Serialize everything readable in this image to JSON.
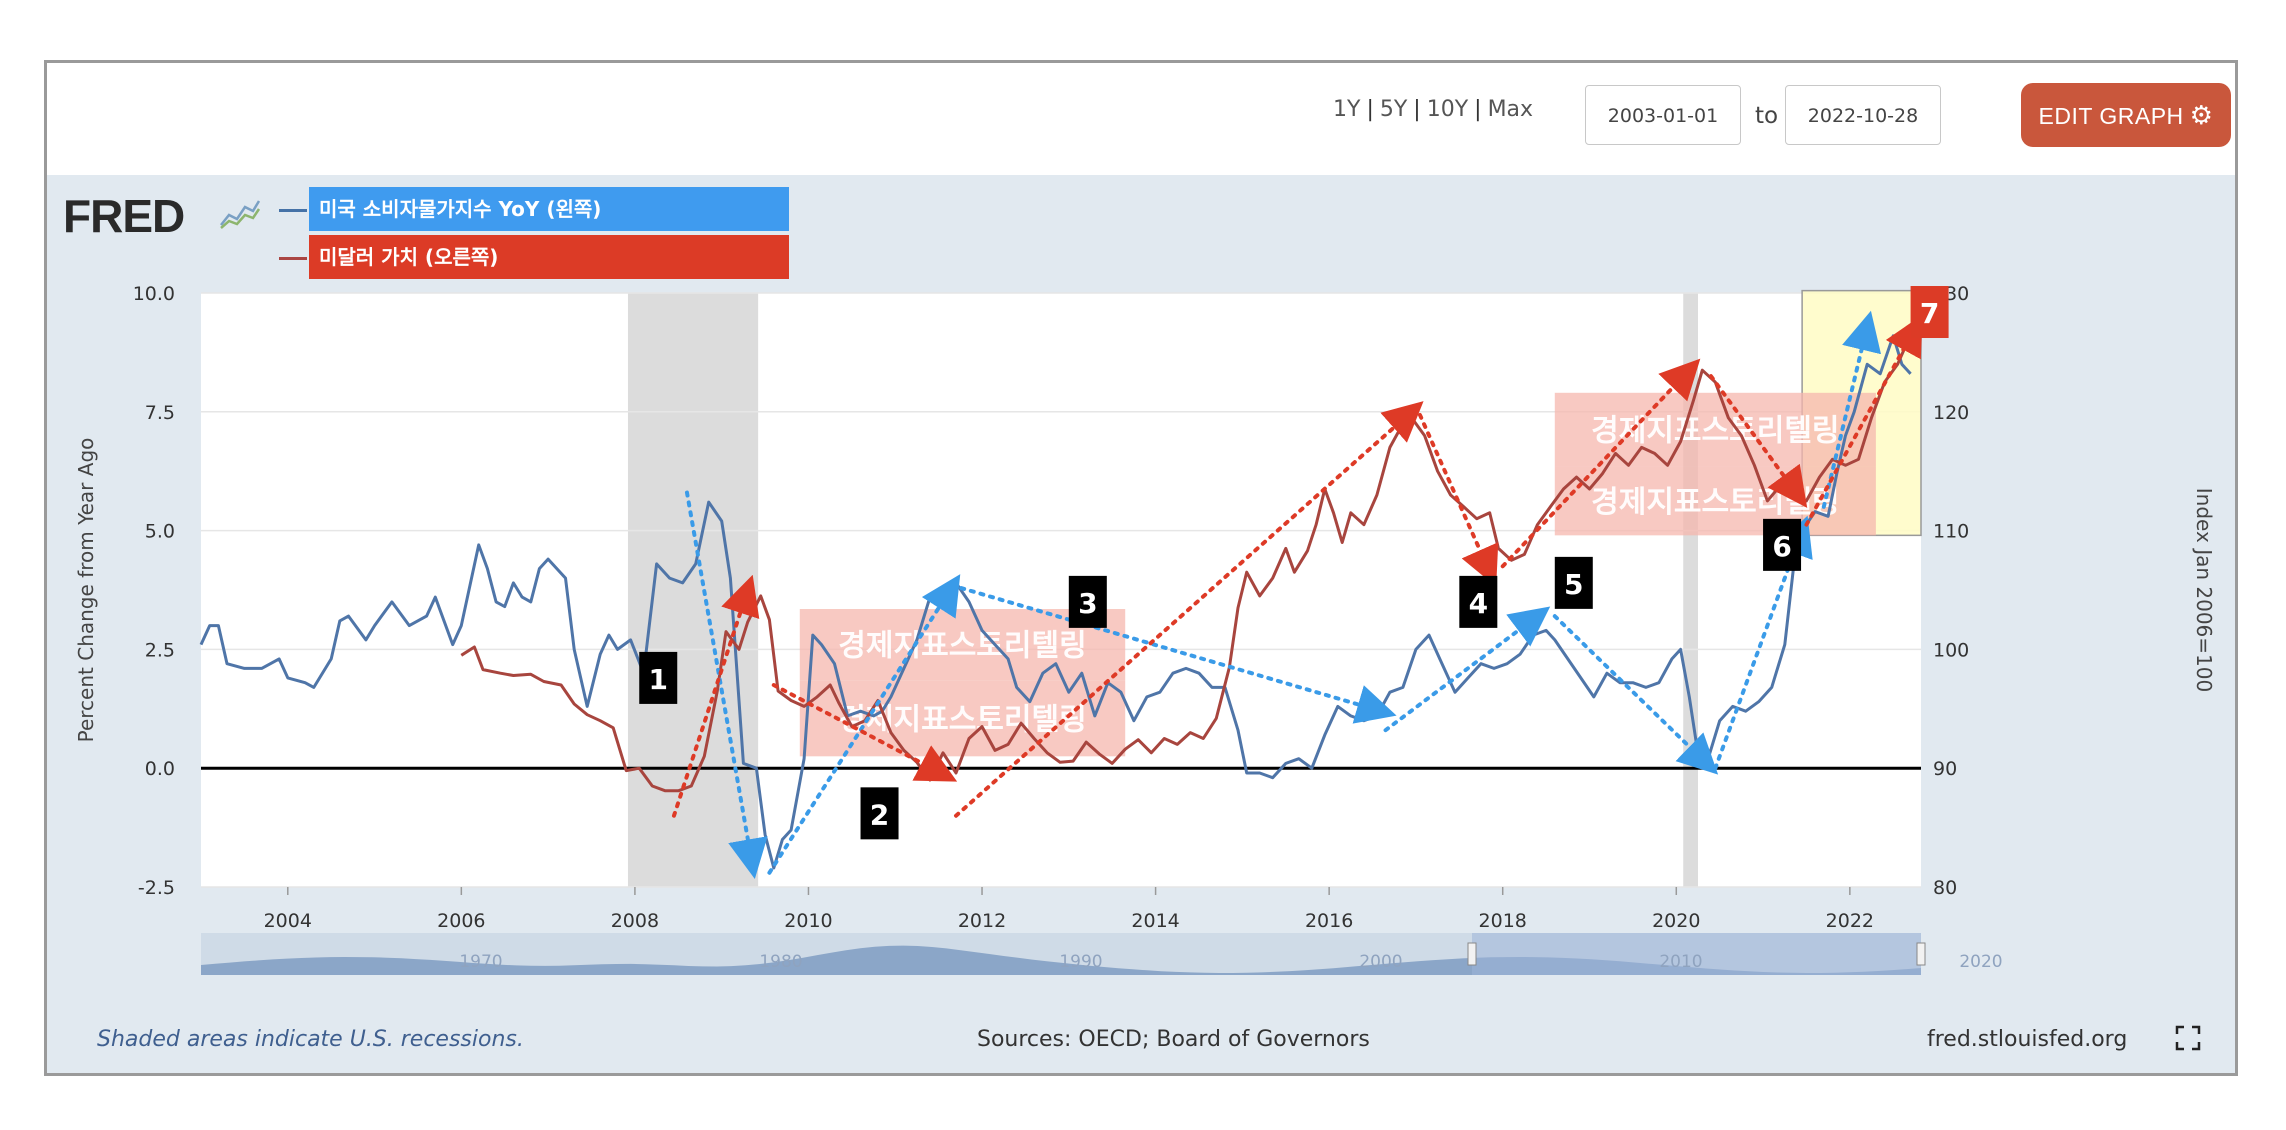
{
  "toolbar": {
    "presets": [
      "1Y",
      "5Y",
      "10Y",
      "Max"
    ],
    "start_date": "2003-01-01",
    "to_label": "to",
    "end_date": "2022-10-28",
    "edit_label": "EDIT GRAPH"
  },
  "logo": {
    "text": "FRED"
  },
  "legend": [
    {
      "label": "미국 소비자물가지수 YoY (왼쪽)",
      "line_color": "#4572a7",
      "box_color": "#3f9bef"
    },
    {
      "label": "미달러 가치 (오른쪽)",
      "line_color": "#aa4643",
      "box_color": "#dc3b26"
    }
  ],
  "footer": {
    "recession_note": "Shaded areas indicate U.S. recessions.",
    "sources": "Sources: OECD; Board of Governors",
    "site": "fred.stlouisfed.org"
  },
  "colors": {
    "cpi": "#4f75a8",
    "usd": "#a8453e",
    "blue_arrow": "#3a9be8",
    "red_arrow": "#de3a26",
    "recession": "#dcdcdc",
    "marker_bg": "#000000",
    "marker7_bg": "#dc3b26",
    "highlight": "#fffbc4"
  },
  "chart_data": {
    "type": "line",
    "xlabel": "",
    "ylabel_left": "Percent Change from Year Ago",
    "ylabel_right": "Index Jan 2006=100",
    "x_range": [
      2003.0,
      2022.82
    ],
    "y_left_range": [
      -2.5,
      10.0
    ],
    "y_right_range": [
      80,
      130
    ],
    "y_left_ticks": [
      "-2.5",
      "0.0",
      "2.5",
      "5.0",
      "7.5",
      "10.0"
    ],
    "y_right_ticks": [
      "80",
      "90",
      "100",
      "110",
      "120",
      "130"
    ],
    "x_ticks": [
      "2004",
      "2006",
      "2008",
      "2010",
      "2012",
      "2014",
      "2016",
      "2018",
      "2020",
      "2022"
    ],
    "grid": true,
    "recessions": [
      [
        2007.92,
        2009.42
      ],
      [
        2020.08,
        2020.25
      ]
    ],
    "series": [
      {
        "name": "미국 소비자물가지수 YoY (왼쪽)",
        "axis": "left",
        "points": [
          [
            2003.0,
            2.6
          ],
          [
            2003.1,
            3.0
          ],
          [
            2003.2,
            3.0
          ],
          [
            2003.3,
            2.2
          ],
          [
            2003.5,
            2.1
          ],
          [
            2003.7,
            2.1
          ],
          [
            2003.9,
            2.3
          ],
          [
            2004.0,
            1.9
          ],
          [
            2004.2,
            1.8
          ],
          [
            2004.3,
            1.7
          ],
          [
            2004.5,
            2.3
          ],
          [
            2004.6,
            3.1
          ],
          [
            2004.7,
            3.2
          ],
          [
            2004.9,
            2.7
          ],
          [
            2005.0,
            3.0
          ],
          [
            2005.2,
            3.5
          ],
          [
            2005.4,
            3.0
          ],
          [
            2005.6,
            3.2
          ],
          [
            2005.7,
            3.6
          ],
          [
            2005.9,
            2.6
          ],
          [
            2006.0,
            3.0
          ],
          [
            2006.2,
            4.7
          ],
          [
            2006.3,
            4.2
          ],
          [
            2006.4,
            3.5
          ],
          [
            2006.5,
            3.4
          ],
          [
            2006.6,
            3.9
          ],
          [
            2006.7,
            3.6
          ],
          [
            2006.8,
            3.5
          ],
          [
            2006.9,
            4.2
          ],
          [
            2007.0,
            4.4
          ],
          [
            2007.2,
            4.0
          ],
          [
            2007.3,
            2.5
          ],
          [
            2007.45,
            1.3
          ],
          [
            2007.6,
            2.4
          ],
          [
            2007.7,
            2.8
          ],
          [
            2007.8,
            2.5
          ],
          [
            2007.95,
            2.7
          ],
          [
            2008.1,
            2.0
          ],
          [
            2008.25,
            4.3
          ],
          [
            2008.4,
            4.0
          ],
          [
            2008.55,
            3.9
          ],
          [
            2008.7,
            4.3
          ],
          [
            2008.85,
            5.6
          ],
          [
            2009.0,
            5.2
          ],
          [
            2009.1,
            4.0
          ],
          [
            2009.25,
            0.1
          ],
          [
            2009.4,
            0.0
          ],
          [
            2009.5,
            -1.4
          ],
          [
            2009.6,
            -2.1
          ],
          [
            2009.7,
            -1.5
          ],
          [
            2009.8,
            -1.3
          ],
          [
            2009.95,
            0.2
          ],
          [
            2010.05,
            2.8
          ],
          [
            2010.15,
            2.6
          ],
          [
            2010.3,
            2.2
          ],
          [
            2010.45,
            1.1
          ],
          [
            2010.6,
            1.2
          ],
          [
            2010.75,
            1.1
          ],
          [
            2010.85,
            1.2
          ],
          [
            2010.95,
            1.5
          ],
          [
            2011.1,
            2.1
          ],
          [
            2011.25,
            2.7
          ],
          [
            2011.4,
            3.6
          ],
          [
            2011.55,
            3.6
          ],
          [
            2011.7,
            3.9
          ],
          [
            2011.85,
            3.5
          ],
          [
            2012.0,
            2.9
          ],
          [
            2012.15,
            2.6
          ],
          [
            2012.3,
            2.3
          ],
          [
            2012.4,
            1.7
          ],
          [
            2012.55,
            1.4
          ],
          [
            2012.7,
            2.0
          ],
          [
            2012.85,
            2.2
          ],
          [
            2013.0,
            1.6
          ],
          [
            2013.15,
            2.0
          ],
          [
            2013.3,
            1.1
          ],
          [
            2013.45,
            1.8
          ],
          [
            2013.6,
            1.6
          ],
          [
            2013.75,
            1.0
          ],
          [
            2013.9,
            1.5
          ],
          [
            2014.05,
            1.6
          ],
          [
            2014.2,
            2.0
          ],
          [
            2014.35,
            2.1
          ],
          [
            2014.5,
            2.0
          ],
          [
            2014.65,
            1.7
          ],
          [
            2014.8,
            1.7
          ],
          [
            2014.95,
            0.8
          ],
          [
            2015.05,
            -0.1
          ],
          [
            2015.2,
            -0.1
          ],
          [
            2015.35,
            -0.2
          ],
          [
            2015.5,
            0.1
          ],
          [
            2015.65,
            0.2
          ],
          [
            2015.8,
            0.0
          ],
          [
            2015.95,
            0.7
          ],
          [
            2016.1,
            1.3
          ],
          [
            2016.25,
            1.1
          ],
          [
            2016.4,
            1.0
          ],
          [
            2016.55,
            1.1
          ],
          [
            2016.7,
            1.6
          ],
          [
            2016.85,
            1.7
          ],
          [
            2017.0,
            2.5
          ],
          [
            2017.15,
            2.8
          ],
          [
            2017.3,
            2.2
          ],
          [
            2017.45,
            1.6
          ],
          [
            2017.6,
            1.9
          ],
          [
            2017.75,
            2.2
          ],
          [
            2017.9,
            2.1
          ],
          [
            2018.05,
            2.2
          ],
          [
            2018.2,
            2.4
          ],
          [
            2018.35,
            2.8
          ],
          [
            2018.5,
            2.9
          ],
          [
            2018.6,
            2.7
          ],
          [
            2018.75,
            2.3
          ],
          [
            2018.9,
            1.9
          ],
          [
            2019.05,
            1.5
          ],
          [
            2019.2,
            2.0
          ],
          [
            2019.35,
            1.8
          ],
          [
            2019.5,
            1.8
          ],
          [
            2019.65,
            1.7
          ],
          [
            2019.8,
            1.8
          ],
          [
            2019.95,
            2.3
          ],
          [
            2020.05,
            2.5
          ],
          [
            2020.15,
            1.5
          ],
          [
            2020.25,
            0.3
          ],
          [
            2020.35,
            0.1
          ],
          [
            2020.5,
            1.0
          ],
          [
            2020.65,
            1.3
          ],
          [
            2020.8,
            1.2
          ],
          [
            2020.95,
            1.4
          ],
          [
            2021.1,
            1.7
          ],
          [
            2021.25,
            2.6
          ],
          [
            2021.35,
            4.2
          ],
          [
            2021.45,
            5.0
          ],
          [
            2021.6,
            5.4
          ],
          [
            2021.75,
            5.3
          ],
          [
            2021.85,
            6.2
          ],
          [
            2021.95,
            7.0
          ],
          [
            2022.05,
            7.5
          ],
          [
            2022.2,
            8.5
          ],
          [
            2022.35,
            8.3
          ],
          [
            2022.5,
            9.1
          ],
          [
            2022.6,
            8.5
          ],
          [
            2022.7,
            8.3
          ]
        ]
      },
      {
        "name": "미달러 가치 (오른쪽)",
        "axis": "right",
        "points": [
          [
            2006.0,
            99.5
          ],
          [
            2006.15,
            100.2
          ],
          [
            2006.25,
            98.3
          ],
          [
            2006.45,
            98.0
          ],
          [
            2006.6,
            97.8
          ],
          [
            2006.8,
            97.9
          ],
          [
            2006.95,
            97.3
          ],
          [
            2007.15,
            97.0
          ],
          [
            2007.3,
            95.4
          ],
          [
            2007.45,
            94.5
          ],
          [
            2007.6,
            94.0
          ],
          [
            2007.75,
            93.4
          ],
          [
            2007.9,
            89.8
          ],
          [
            2008.05,
            90.0
          ],
          [
            2008.2,
            88.5
          ],
          [
            2008.35,
            88.1
          ],
          [
            2008.5,
            88.1
          ],
          [
            2008.65,
            88.5
          ],
          [
            2008.8,
            91.0
          ],
          [
            2008.95,
            96.5
          ],
          [
            2009.05,
            101.5
          ],
          [
            2009.2,
            100.0
          ],
          [
            2009.3,
            102.3
          ],
          [
            2009.45,
            104.5
          ],
          [
            2009.55,
            102.5
          ],
          [
            2009.65,
            96.5
          ],
          [
            2009.8,
            95.7
          ],
          [
            2009.95,
            95.2
          ],
          [
            2010.1,
            96.0
          ],
          [
            2010.25,
            97.0
          ],
          [
            2010.35,
            95.5
          ],
          [
            2010.5,
            93.5
          ],
          [
            2010.65,
            94.0
          ],
          [
            2010.8,
            95.7
          ],
          [
            2010.95,
            93.0
          ],
          [
            2011.1,
            91.5
          ],
          [
            2011.25,
            90.5
          ],
          [
            2011.4,
            89.0
          ],
          [
            2011.55,
            91.3
          ],
          [
            2011.7,
            89.6
          ],
          [
            2011.85,
            92.5
          ],
          [
            2012.0,
            93.5
          ],
          [
            2012.15,
            91.5
          ],
          [
            2012.3,
            92.0
          ],
          [
            2012.45,
            93.8
          ],
          [
            2012.6,
            92.5
          ],
          [
            2012.75,
            91.3
          ],
          [
            2012.9,
            90.5
          ],
          [
            2013.05,
            90.6
          ],
          [
            2013.2,
            92.2
          ],
          [
            2013.35,
            91.2
          ],
          [
            2013.5,
            90.4
          ],
          [
            2013.65,
            91.6
          ],
          [
            2013.8,
            92.4
          ],
          [
            2013.95,
            91.3
          ],
          [
            2014.1,
            92.5
          ],
          [
            2014.25,
            92.0
          ],
          [
            2014.4,
            93.0
          ],
          [
            2014.55,
            92.5
          ],
          [
            2014.7,
            94.2
          ],
          [
            2014.85,
            98.5
          ],
          [
            2014.95,
            103.5
          ],
          [
            2015.05,
            106.5
          ],
          [
            2015.2,
            104.5
          ],
          [
            2015.35,
            106.0
          ],
          [
            2015.5,
            108.5
          ],
          [
            2015.6,
            106.5
          ],
          [
            2015.75,
            108.3
          ],
          [
            2015.85,
            110.5
          ],
          [
            2015.95,
            113.5
          ],
          [
            2016.05,
            111.5
          ],
          [
            2016.15,
            109.0
          ],
          [
            2016.25,
            111.5
          ],
          [
            2016.4,
            110.5
          ],
          [
            2016.55,
            113.0
          ],
          [
            2016.7,
            117.0
          ],
          [
            2016.85,
            119.0
          ],
          [
            2016.95,
            119.5
          ],
          [
            2017.1,
            118.0
          ],
          [
            2017.25,
            115.0
          ],
          [
            2017.4,
            113.0
          ],
          [
            2017.55,
            112.0
          ],
          [
            2017.7,
            111.0
          ],
          [
            2017.85,
            111.5
          ],
          [
            2017.95,
            108.5
          ],
          [
            2018.1,
            107.5
          ],
          [
            2018.25,
            108.0
          ],
          [
            2018.4,
            110.5
          ],
          [
            2018.55,
            112.0
          ],
          [
            2018.7,
            113.5
          ],
          [
            2018.85,
            114.5
          ],
          [
            2019.0,
            113.5
          ],
          [
            2019.15,
            114.8
          ],
          [
            2019.3,
            116.5
          ],
          [
            2019.45,
            115.5
          ],
          [
            2019.6,
            117.0
          ],
          [
            2019.75,
            116.5
          ],
          [
            2019.9,
            115.5
          ],
          [
            2020.05,
            117.5
          ],
          [
            2020.2,
            121.0
          ],
          [
            2020.3,
            123.5
          ],
          [
            2020.45,
            122.5
          ],
          [
            2020.6,
            119.5
          ],
          [
            2020.75,
            118.0
          ],
          [
            2020.9,
            115.5
          ],
          [
            2021.05,
            112.5
          ],
          [
            2021.2,
            113.8
          ],
          [
            2021.35,
            113.0
          ],
          [
            2021.5,
            112.5
          ],
          [
            2021.65,
            114.5
          ],
          [
            2021.8,
            116.0
          ],
          [
            2021.95,
            115.5
          ],
          [
            2022.1,
            116.0
          ],
          [
            2022.25,
            119.5
          ],
          [
            2022.4,
            122.5
          ],
          [
            2022.55,
            124.0
          ],
          [
            2022.7,
            126.5
          ],
          [
            2022.8,
            128.0
          ]
        ]
      }
    ],
    "annotations": {
      "markers": [
        "1",
        "2",
        "3",
        "4",
        "5",
        "6",
        "7"
      ],
      "watermark_text": "경제지표스토리텔링"
    },
    "navigator_ticks": [
      "1970",
      "1980",
      "1990",
      "2000",
      "2010",
      "2020"
    ]
  }
}
